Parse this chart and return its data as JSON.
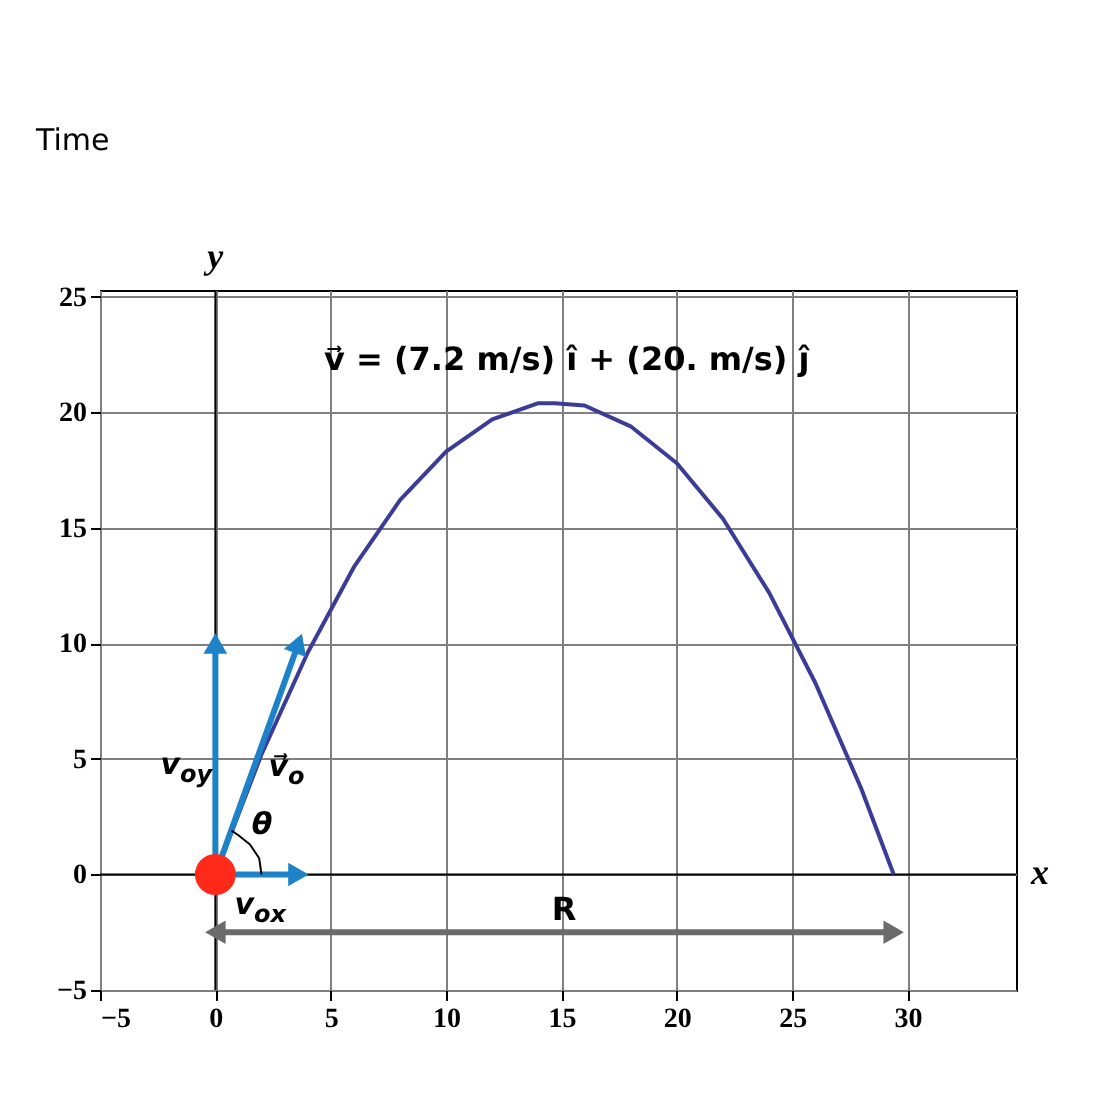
{
  "chart_data": {
    "type": "line",
    "xlabel": "x",
    "ylabel": "y",
    "xlim": [
      -5,
      34.7
    ],
    "ylim": [
      -5,
      25.3
    ],
    "xticks": [
      {
        "value": -5,
        "label": "−5"
      },
      0,
      5,
      10,
      15,
      20,
      25,
      30
    ],
    "yticks": [
      {
        "value": -5,
        "label": "−5"
      },
      0,
      5,
      10,
      15,
      20,
      25
    ],
    "grid": true,
    "series": [
      {
        "color": "#3b3b98",
        "x": [
          0,
          2,
          4,
          6,
          8,
          10,
          12,
          14,
          14.7,
          16,
          18,
          20,
          22,
          24,
          26,
          28,
          29.4
        ],
        "values": [
          0,
          5.2,
          9.6,
          13.3,
          16.2,
          18.3,
          19.7,
          20.4,
          20.4,
          20.3,
          19.4,
          17.8,
          15.4,
          12.2,
          8.3,
          3.7,
          0
        ]
      },
      {
        "color": "#1e82c8",
        "x": [
          0,
          0
        ],
        "values": [
          0,
          10
        ]
      },
      {
        "color": "#1e82c8",
        "x": [
          0,
          3.6
        ],
        "values": [
          0,
          10
        ]
      },
      {
        "color": "#1e82c8",
        "x": [
          0,
          3.6
        ],
        "values": [
          0,
          0
        ]
      },
      {
        "color": "#6b6b6b",
        "marker": "triangle",
        "x": [
          0,
          29.4
        ],
        "values": [
          -2.5,
          -2.5
        ]
      },
      {
        "color": "#000000",
        "x": [
          2,
          1.9,
          1.5,
          1,
          0.7
        ],
        "values": [
          0,
          0.7,
          1.3,
          1.7,
          1.9
        ]
      },
      {
        "type": "scatter",
        "color": "#ff2a1a",
        "marker": "circle",
        "x": [
          0
        ],
        "values": [
          0
        ]
      }
    ],
    "annotations": [
      "Time",
      "v⃗ = (7.2 m/s) î + (20. m/s) ĵ",
      "v$_{oy}$",
      "v⃗$_{o}$",
      "θ",
      "v$_{ox}$",
      "R"
    ]
  }
}
